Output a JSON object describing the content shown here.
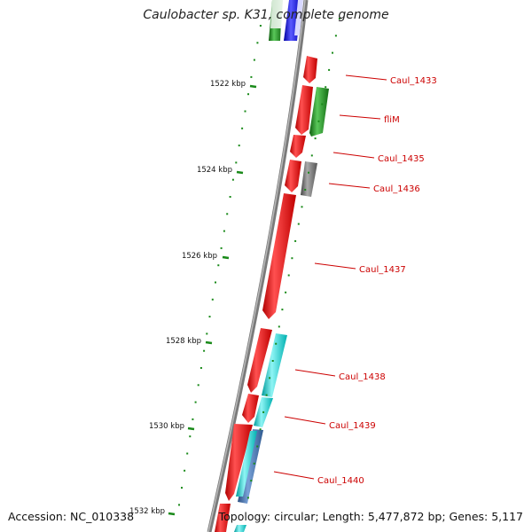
{
  "title": "Caulobacter sp. K31, complete genome",
  "accession": "Accession: NC_010338",
  "summary": "Topology: circular; Length: 5,477,872 bp; Genes: 5,117",
  "scale_labels": [
    "1522 kbp",
    "1524 kbp",
    "1526 kbp",
    "1528 kbp",
    "1530 kbp",
    "1532 kbp"
  ],
  "gene_labels": [
    "Caul_1433",
    "fliM",
    "Caul_1435",
    "Caul_1436",
    "Caul_1437",
    "Caul_1438",
    "Caul_1439",
    "Caul_1440"
  ],
  "colors": {
    "red": "#ff0000",
    "green": "#1f8c1f",
    "blue": "#1010ee",
    "cyan": "#10d8d8",
    "gray": "#777777",
    "steel": "#4a78b0",
    "backbone": "#7a7a7a",
    "tick": "#1a8a1a",
    "label": "#cc0000"
  }
}
